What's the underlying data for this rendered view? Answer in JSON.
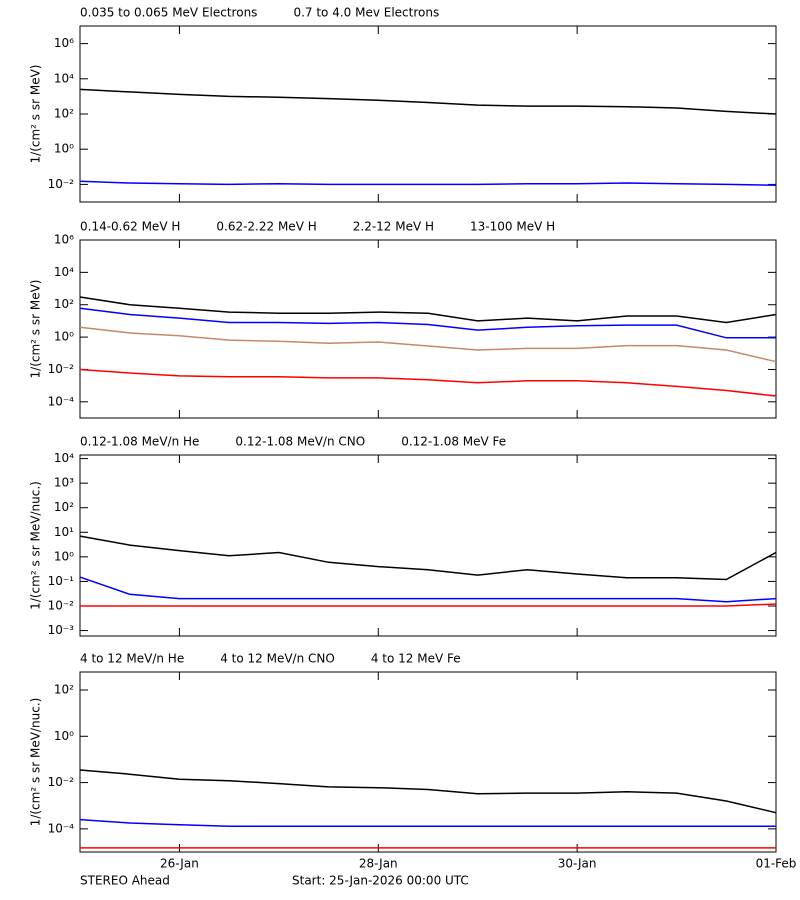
{
  "chart_data": [
    {
      "type": "line",
      "log_y": true,
      "ylabel": "1/(cm² s sr MeV)",
      "x": [
        0,
        0.5,
        1,
        1.5,
        2,
        2.5,
        3,
        3.5,
        4,
        4.5,
        5,
        5.5,
        6,
        6.5,
        7
      ],
      "xlim": [
        0,
        7
      ],
      "xticks": [
        {
          "value": 1,
          "label": "26-Jan"
        },
        {
          "value": 3,
          "label": "28-Jan"
        },
        {
          "value": 5,
          "label": "30-Jan"
        },
        {
          "value": 7,
          "label": "01-Feb"
        }
      ],
      "ylim": [
        0.001,
        10000000
      ],
      "yticks": [
        {
          "value": 0.01,
          "label": "10⁻²"
        },
        {
          "value": 1,
          "label": "10⁰"
        },
        {
          "value": 100,
          "label": "10²"
        },
        {
          "value": 10000,
          "label": "10⁴"
        },
        {
          "value": 1000000,
          "label": "10⁶"
        }
      ],
      "series": [
        {
          "name": "0.035 to 0.065 MeV Electrons",
          "color": "#000000",
          "values": [
            2500,
            1800,
            1300,
            1000,
            900,
            750,
            600,
            450,
            320,
            280,
            280,
            260,
            220,
            140,
            100
          ]
        },
        {
          "name": "0.7 to 4.0 Mev Electrons",
          "color": "#0000ff",
          "values": [
            0.015,
            0.012,
            0.011,
            0.01,
            0.011,
            0.01,
            0.01,
            0.01,
            0.01,
            0.011,
            0.011,
            0.012,
            0.011,
            0.01,
            0.009
          ]
        }
      ]
    },
    {
      "type": "line",
      "log_y": true,
      "ylabel": "1/(cm² s sr MeV)",
      "x": [
        0,
        0.5,
        1,
        1.5,
        2,
        2.5,
        3,
        3.5,
        4,
        4.5,
        5,
        5.5,
        6,
        6.5,
        7
      ],
      "xlim": [
        0,
        7
      ],
      "xticks": [
        {
          "value": 1,
          "label": "26-Jan"
        },
        {
          "value": 3,
          "label": "28-Jan"
        },
        {
          "value": 5,
          "label": "30-Jan"
        },
        {
          "value": 7,
          "label": "01-Feb"
        }
      ],
      "ylim": [
        1e-05,
        1000000
      ],
      "yticks": [
        {
          "value": 0.0001,
          "label": "10⁻⁴"
        },
        {
          "value": 0.01,
          "label": "10⁻²"
        },
        {
          "value": 1,
          "label": "10⁰"
        },
        {
          "value": 100,
          "label": "10²"
        },
        {
          "value": 10000,
          "label": "10⁴"
        },
        {
          "value": 1000000,
          "label": "10⁶"
        }
      ],
      "series": [
        {
          "name": "0.14-0.62 MeV H",
          "color": "#000000",
          "values": [
            300,
            100,
            60,
            35,
            30,
            30,
            35,
            30,
            10,
            15,
            10,
            20,
            20,
            8,
            25
          ]
        },
        {
          "name": "0.62-2.22 MeV H",
          "color": "#0000ff",
          "values": [
            60,
            25,
            15,
            8,
            8,
            7,
            8,
            6,
            2.7,
            4,
            5,
            5.5,
            5.5,
            0.9,
            0.9
          ]
        },
        {
          "name": "2.2-12 MeV H",
          "color": "#c8866a",
          "values": [
            4,
            1.8,
            1.2,
            0.65,
            0.55,
            0.42,
            0.5,
            0.28,
            0.16,
            0.2,
            0.2,
            0.3,
            0.3,
            0.16,
            0.03
          ]
        },
        {
          "name": "13-100 MeV H",
          "color": "#ff0000",
          "values": [
            0.01,
            0.006,
            0.004,
            0.0035,
            0.0035,
            0.003,
            0.003,
            0.0023,
            0.0015,
            0.002,
            0.002,
            0.0015,
            0.0009,
            0.0005,
            0.00023
          ]
        }
      ]
    },
    {
      "type": "line",
      "log_y": true,
      "ylabel": "1/(cm² s sr MeV/nuc.)",
      "x": [
        0,
        0.5,
        1,
        1.5,
        2,
        2.5,
        3,
        3.5,
        4,
        4.5,
        5,
        5.5,
        6,
        6.5,
        7
      ],
      "xlim": [
        0,
        7
      ],
      "xticks": [
        {
          "value": 1,
          "label": "26-Jan"
        },
        {
          "value": 3,
          "label": "28-Jan"
        },
        {
          "value": 5,
          "label": "30-Jan"
        },
        {
          "value": 7,
          "label": "01-Feb"
        }
      ],
      "ylim": [
        0.0006,
        14000
      ],
      "yticks": [
        {
          "value": 0.001,
          "label": "10⁻³"
        },
        {
          "value": 0.01,
          "label": "10⁻²"
        },
        {
          "value": 0.1,
          "label": "10⁻¹"
        },
        {
          "value": 1,
          "label": "10⁰"
        },
        {
          "value": 10,
          "label": "10¹"
        },
        {
          "value": 100,
          "label": "10²"
        },
        {
          "value": 1000,
          "label": "10³"
        },
        {
          "value": 10000,
          "label": "10⁴"
        }
      ],
      "series": [
        {
          "name": "0.12-1.08 MeV/n He",
          "color": "#000000",
          "values": [
            7,
            3,
            1.8,
            1.1,
            1.5,
            0.6,
            0.4,
            0.3,
            0.18,
            0.3,
            0.2,
            0.14,
            0.14,
            0.12,
            1.5
          ]
        },
        {
          "name": "0.12-1.08 MeV/n CNO",
          "color": "#0000ff",
          "values": [
            0.15,
            0.03,
            0.02,
            0.02,
            0.02,
            0.02,
            0.02,
            0.02,
            0.02,
            0.02,
            0.02,
            0.02,
            0.02,
            0.015,
            0.02
          ]
        },
        {
          "name": "0.12-1.08 MeV Fe",
          "color": "#ff0000",
          "values": [
            0.01,
            0.01,
            0.01,
            0.01,
            0.01,
            0.01,
            0.01,
            0.01,
            0.01,
            0.01,
            0.01,
            0.01,
            0.01,
            0.01,
            0.012
          ]
        }
      ]
    },
    {
      "type": "line",
      "log_y": true,
      "ylabel": "1/(cm² s sr MeV/nuc.)",
      "x": [
        0,
        0.5,
        1,
        1.5,
        2,
        2.5,
        3,
        3.5,
        4,
        4.5,
        5,
        5.5,
        6,
        6.5,
        7
      ],
      "xlim": [
        0,
        7
      ],
      "xticks": [
        {
          "value": 1,
          "label": "26-Jan"
        },
        {
          "value": 3,
          "label": "28-Jan"
        },
        {
          "value": 5,
          "label": "30-Jan"
        },
        {
          "value": 7,
          "label": "01-Feb"
        }
      ],
      "ylim": [
        1e-05,
        600
      ],
      "yticks": [
        {
          "value": 0.0001,
          "label": "10⁻⁴"
        },
        {
          "value": 0.01,
          "label": "10⁻²"
        },
        {
          "value": 1,
          "label": "10⁰"
        },
        {
          "value": 100,
          "label": "10²"
        }
      ],
      "series": [
        {
          "name": "4 to 12 MeV/n He",
          "color": "#000000",
          "values": [
            0.035,
            0.023,
            0.014,
            0.012,
            0.009,
            0.0065,
            0.006,
            0.005,
            0.0033,
            0.0035,
            0.0035,
            0.004,
            0.0035,
            0.0016,
            0.0005
          ]
        },
        {
          "name": "4 to 12 MeV/n CNO",
          "color": "#0000ff",
          "values": [
            0.00025,
            0.00018,
            0.00015,
            0.00013,
            0.00013,
            0.00013,
            0.00013,
            0.00013,
            0.00013,
            0.00013,
            0.00013,
            0.00013,
            0.00013,
            0.00013,
            0.00013
          ]
        },
        {
          "name": "4 to 12 MeV Fe",
          "color": "#ff0000",
          "values": [
            1.5e-05,
            1.5e-05,
            1.5e-05,
            1.5e-05,
            1.5e-05,
            1.5e-05,
            1.5e-05,
            1.5e-05,
            1.5e-05,
            1.5e-05,
            1.5e-05,
            1.5e-05,
            1.5e-05,
            1.5e-05,
            1.5e-05
          ]
        }
      ]
    }
  ],
  "footer": {
    "spacecraft": "STEREO Ahead",
    "start": "Start: 25-Jan-2026 00:00 UTC"
  }
}
